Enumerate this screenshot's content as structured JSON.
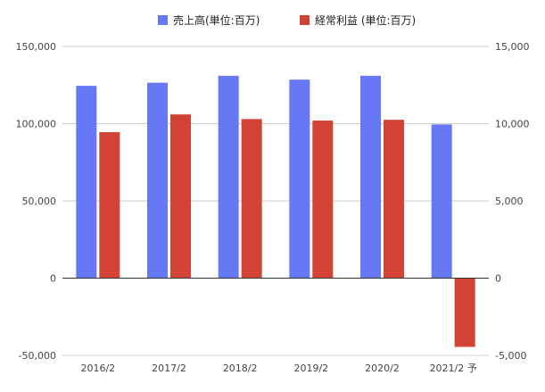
{
  "chart_data": {
    "type": "bar",
    "categories": [
      "2016/2",
      "2017/2",
      "2018/2",
      "2019/2",
      "2020/2",
      "2021/2 予"
    ],
    "series": [
      {
        "name": "売上高(単位:百万)",
        "axis": "left",
        "color": "#6678f3",
        "values": [
          124500,
          126500,
          131000,
          128500,
          131000,
          99500
        ]
      },
      {
        "name": "経常利益 (単位:百万)",
        "axis": "right",
        "color": "#d24335",
        "values": [
          9450,
          10600,
          10300,
          10200,
          10250,
          -4450
        ]
      }
    ],
    "y_left": {
      "ylim": [
        -50000,
        150000
      ],
      "ticks": [
        -50000,
        0,
        50000,
        100000,
        150000
      ],
      "tick_labels": [
        "-50,000",
        "0",
        "50,000",
        "100,000",
        "150,000"
      ]
    },
    "y_right": {
      "ylim": [
        -5000,
        15000
      ],
      "ticks": [
        -5000,
        0,
        5000,
        10000,
        15000
      ],
      "tick_labels": [
        "-5,000",
        "0",
        "5,000",
        "10,000",
        "15,000"
      ]
    },
    "grid": true,
    "legend": "top-center",
    "title": "",
    "xlabel": "",
    "ylabel": ""
  }
}
